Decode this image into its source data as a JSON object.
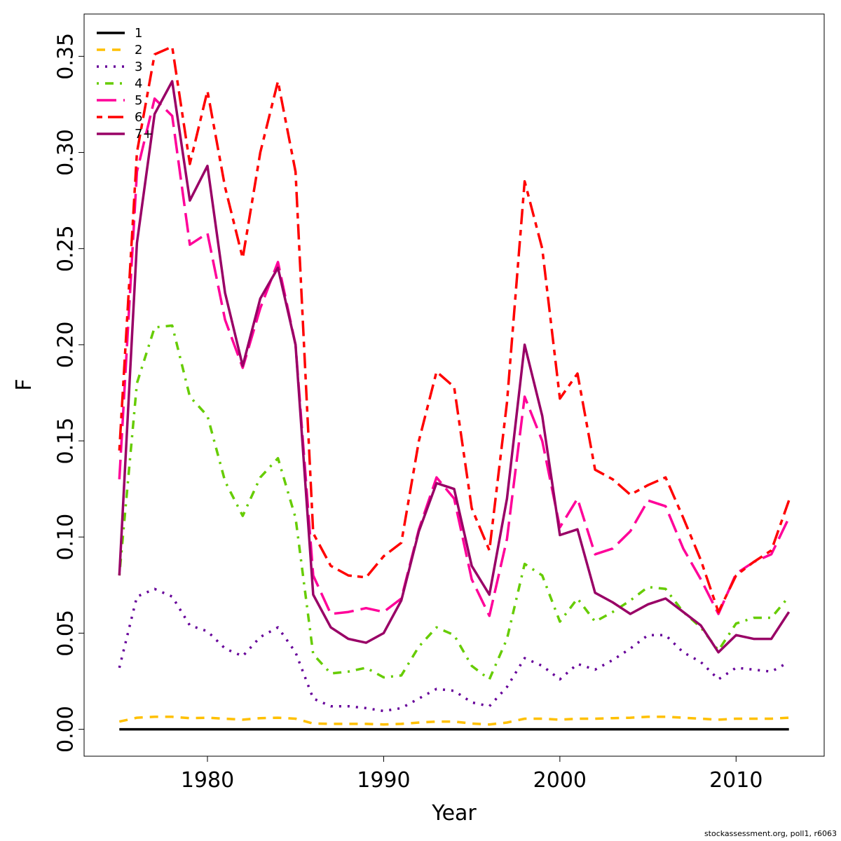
{
  "chart_data": {
    "type": "line",
    "title": "",
    "xlabel": "Year",
    "ylabel": "F",
    "xlim": [
      1973,
      2015
    ],
    "ylim": [
      -0.014,
      0.372
    ],
    "x_ticks": [
      1980,
      1990,
      2000,
      2010
    ],
    "y_ticks": [
      0.0,
      0.05,
      0.1,
      0.15,
      0.2,
      0.25,
      0.3,
      0.35
    ],
    "y_tick_labels": [
      "0.00",
      "0.05",
      "0.10",
      "0.15",
      "0.20",
      "0.25",
      "0.30",
      "0.35"
    ],
    "grid": false,
    "legend_position": "top-left",
    "x": [
      1975,
      1976,
      1977,
      1978,
      1979,
      1980,
      1981,
      1982,
      1983,
      1984,
      1985,
      1986,
      1987,
      1988,
      1989,
      1990,
      1991,
      1992,
      1993,
      1994,
      1995,
      1996,
      1997,
      1998,
      1999,
      2000,
      2001,
      2002,
      2003,
      2004,
      2005,
      2006,
      2007,
      2008,
      2009,
      2010,
      2011,
      2012,
      2013
    ],
    "series": [
      {
        "name": "1",
        "color": "#000000",
        "dash": "solid",
        "values": [
          0,
          0,
          0,
          0,
          0,
          0,
          0,
          0,
          0,
          0,
          0,
          0,
          0,
          0,
          0,
          0,
          0,
          0,
          0,
          0,
          0,
          0,
          0,
          0,
          0,
          0,
          0,
          0,
          0,
          0,
          0,
          0,
          0,
          0,
          0,
          0,
          0,
          0,
          0
        ]
      },
      {
        "name": "2",
        "color": "#FFC000",
        "dash": "dashed",
        "values": [
          0.004,
          0.006,
          0.0065,
          0.0065,
          0.0058,
          0.006,
          0.0055,
          0.005,
          0.0058,
          0.006,
          0.0055,
          0.003,
          0.0028,
          0.0028,
          0.0028,
          0.0025,
          0.0028,
          0.0035,
          0.004,
          0.004,
          0.003,
          0.0025,
          0.0035,
          0.0055,
          0.0055,
          0.005,
          0.0055,
          0.0055,
          0.0058,
          0.006,
          0.0065,
          0.0065,
          0.006,
          0.0055,
          0.005,
          0.0055,
          0.0055,
          0.0055,
          0.006
        ]
      },
      {
        "name": "3",
        "color": "#660099",
        "dash": "dotted",
        "values": [
          0.032,
          0.069,
          0.073,
          0.069,
          0.054,
          0.051,
          0.042,
          0.038,
          0.048,
          0.053,
          0.04,
          0.016,
          0.012,
          0.012,
          0.011,
          0.0095,
          0.011,
          0.016,
          0.021,
          0.02,
          0.014,
          0.012,
          0.022,
          0.037,
          0.033,
          0.026,
          0.034,
          0.031,
          0.036,
          0.042,
          0.049,
          0.049,
          0.04,
          0.035,
          0.026,
          0.032,
          0.031,
          0.03,
          0.035
        ]
      },
      {
        "name": "4",
        "color": "#66CC00",
        "dash": "dotdash",
        "values": [
          0.08,
          0.18,
          0.209,
          0.21,
          0.173,
          0.163,
          0.129,
          0.111,
          0.131,
          0.141,
          0.11,
          0.039,
          0.029,
          0.03,
          0.032,
          0.027,
          0.028,
          0.043,
          0.053,
          0.049,
          0.033,
          0.026,
          0.047,
          0.086,
          0.08,
          0.056,
          0.068,
          0.056,
          0.061,
          0.067,
          0.074,
          0.073,
          0.061,
          0.053,
          0.041,
          0.055,
          0.058,
          0.058,
          0.069
        ]
      },
      {
        "name": "5",
        "color": "#FF0099",
        "dash": "longdash",
        "values": [
          0.13,
          0.29,
          0.328,
          0.319,
          0.252,
          0.258,
          0.213,
          0.188,
          0.219,
          0.243,
          0.2,
          0.08,
          0.06,
          0.061,
          0.063,
          0.061,
          0.068,
          0.104,
          0.131,
          0.12,
          0.078,
          0.059,
          0.099,
          0.173,
          0.15,
          0.105,
          0.12,
          0.091,
          0.094,
          0.103,
          0.119,
          0.116,
          0.094,
          0.078,
          0.06,
          0.081,
          0.087,
          0.091,
          0.11
        ]
      },
      {
        "name": "6",
        "color": "#FF0000",
        "dash": "twodash",
        "values": [
          0.145,
          0.3,
          0.351,
          0.355,
          0.294,
          0.332,
          0.282,
          0.245,
          0.3,
          0.337,
          0.29,
          0.102,
          0.085,
          0.08,
          0.079,
          0.09,
          0.097,
          0.15,
          0.186,
          0.178,
          0.115,
          0.093,
          0.17,
          0.285,
          0.25,
          0.172,
          0.185,
          0.135,
          0.13,
          0.122,
          0.127,
          0.131,
          0.11,
          0.088,
          0.061,
          0.08,
          0.087,
          0.093,
          0.119
        ]
      },
      {
        "name": "7+",
        "color": "#990066",
        "dash": "solid",
        "values": [
          0.08,
          0.253,
          0.32,
          0.337,
          0.275,
          0.293,
          0.227,
          0.189,
          0.224,
          0.24,
          0.2,
          0.07,
          0.053,
          0.047,
          0.045,
          0.05,
          0.067,
          0.103,
          0.128,
          0.125,
          0.085,
          0.07,
          0.12,
          0.2,
          0.163,
          0.101,
          0.104,
          0.071,
          0.066,
          0.06,
          0.065,
          0.068,
          0.061,
          0.054,
          0.04,
          0.049,
          0.047,
          0.047,
          0.061
        ]
      }
    ]
  },
  "credit": "stockassessment.org, poll1, r6063"
}
